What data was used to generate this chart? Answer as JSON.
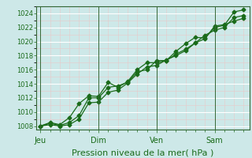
{
  "title": "",
  "xlabel": "Pression niveau de la mer( hPa )",
  "ylabel": "",
  "background_color": "#cde8e8",
  "grid_color": "#ffffff",
  "line_color": "#1a6b1a",
  "ylim": [
    1007.5,
    1025.0
  ],
  "yticks": [
    1008,
    1010,
    1012,
    1014,
    1016,
    1018,
    1020,
    1022,
    1024
  ],
  "day_labels": [
    "Jeu",
    "Dim",
    "Ven",
    "Sam"
  ],
  "day_positions": [
    0.0,
    3.0,
    6.0,
    9.0
  ],
  "xlim": [
    -0.2,
    10.8
  ],
  "line1_x": [
    0.0,
    0.5,
    1.0,
    1.5,
    2.0,
    2.5,
    3.0,
    3.5,
    4.0,
    4.5,
    5.0,
    5.5,
    6.0,
    6.5,
    7.0,
    7.5,
    8.0,
    8.5,
    9.0,
    9.5,
    10.0,
    10.5
  ],
  "line1_y": [
    1008.0,
    1008.4,
    1008.1,
    1008.5,
    1009.5,
    1012.0,
    1012.0,
    1013.5,
    1013.7,
    1014.2,
    1015.7,
    1016.0,
    1017.3,
    1017.3,
    1018.2,
    1018.9,
    1019.8,
    1020.4,
    1022.2,
    1022.4,
    1022.9,
    1023.3
  ],
  "line2_x": [
    0.0,
    0.5,
    1.0,
    1.5,
    2.0,
    2.5,
    3.0,
    3.5,
    4.0,
    4.5,
    5.0,
    5.5,
    6.0,
    6.5,
    7.0,
    7.5,
    8.0,
    8.5,
    9.0,
    9.5,
    10.0,
    10.5
  ],
  "line2_y": [
    1008.0,
    1008.5,
    1008.2,
    1009.2,
    1011.2,
    1012.3,
    1012.2,
    1014.2,
    1013.5,
    1014.3,
    1016.0,
    1017.0,
    1017.0,
    1017.3,
    1018.6,
    1019.7,
    1020.6,
    1020.5,
    1022.0,
    1022.3,
    1024.2,
    1024.5
  ],
  "line3_x": [
    0.0,
    0.5,
    1.0,
    1.5,
    2.0,
    2.5,
    3.0,
    3.5,
    4.0,
    4.5,
    5.0,
    5.5,
    6.0,
    6.5,
    7.0,
    7.5,
    8.0,
    8.5,
    9.0,
    9.5,
    10.0,
    10.5
  ],
  "line3_y": [
    1008.0,
    1008.2,
    1008.0,
    1008.2,
    1009.0,
    1011.3,
    1011.4,
    1012.8,
    1013.1,
    1014.1,
    1015.4,
    1016.4,
    1016.6,
    1017.4,
    1018.0,
    1018.7,
    1019.8,
    1020.9,
    1021.6,
    1022.0,
    1023.4,
    1023.7
  ],
  "xlabel_fontsize": 8,
  "ytick_fontsize": 6,
  "xtick_fontsize": 7
}
